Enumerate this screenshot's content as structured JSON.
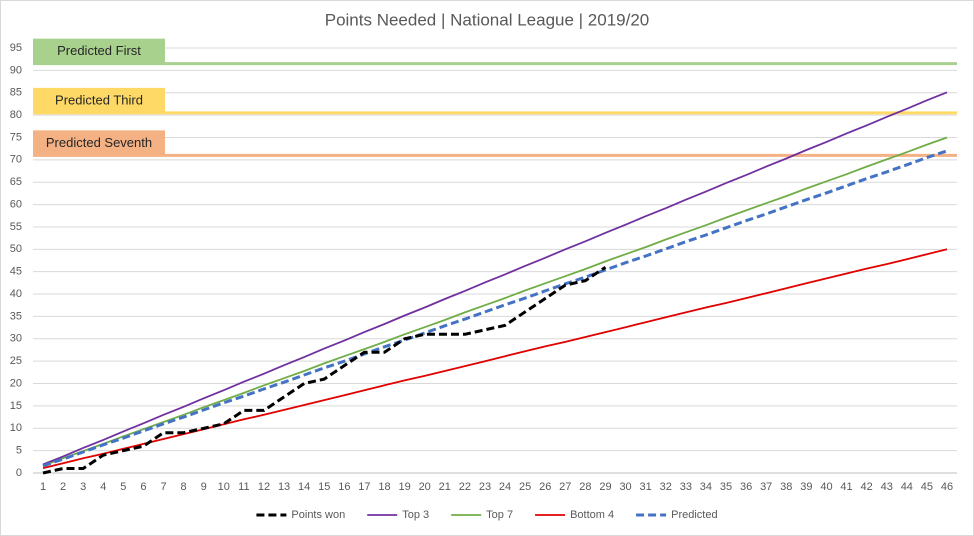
{
  "chart_data": {
    "type": "line",
    "title": "Points Needed  | National League | 2019/20",
    "categories": [
      1,
      2,
      3,
      4,
      5,
      6,
      7,
      8,
      9,
      10,
      11,
      12,
      13,
      14,
      15,
      16,
      17,
      18,
      19,
      20,
      21,
      22,
      23,
      24,
      25,
      26,
      27,
      28,
      29,
      30,
      31,
      32,
      33,
      34,
      35,
      36,
      37,
      38,
      39,
      40,
      41,
      42,
      43,
      44,
      45,
      46
    ],
    "ylim": [
      0,
      95
    ],
    "yticks": [
      0,
      5,
      10,
      15,
      20,
      25,
      30,
      35,
      40,
      45,
      50,
      55,
      60,
      65,
      70,
      75,
      80,
      85,
      90,
      95
    ],
    "grid": true,
    "legend": "bottom",
    "series": [
      {
        "name": "Points won",
        "color": "#000000",
        "dashed": true,
        "values": [
          0,
          1,
          1,
          4,
          5,
          6,
          9,
          9,
          10,
          11,
          14,
          14,
          17,
          20,
          21,
          24,
          27,
          27,
          30,
          31,
          31,
          31,
          32,
          33,
          36,
          39,
          42,
          43,
          46,
          null,
          null,
          null,
          null,
          null,
          null,
          null,
          null,
          null,
          null,
          null,
          null,
          null,
          null,
          null,
          null,
          null
        ]
      },
      {
        "name": "Top 3",
        "color": "#7030a0",
        "dashed": false,
        "values": [
          1.9,
          3.7,
          5.6,
          7.4,
          9.3,
          11.1,
          13.0,
          14.8,
          16.7,
          18.5,
          20.4,
          22.2,
          24.1,
          25.9,
          27.8,
          29.6,
          31.5,
          33.3,
          35.2,
          37.0,
          38.9,
          40.7,
          42.6,
          44.4,
          46.3,
          48.1,
          50.0,
          51.8,
          53.7,
          55.5,
          57.4,
          59.2,
          61.1,
          62.9,
          64.8,
          66.6,
          68.5,
          70.3,
          72.2,
          74.0,
          75.9,
          77.7,
          79.6,
          81.4,
          83.3,
          85.1
        ]
      },
      {
        "name": "Top 7",
        "color": "#70ad47",
        "dashed": false,
        "values": [
          1.6,
          3.3,
          4.9,
          6.5,
          8.2,
          9.8,
          11.4,
          13.0,
          14.7,
          16.3,
          17.9,
          19.6,
          21.2,
          22.8,
          24.5,
          26.1,
          27.7,
          29.3,
          31.0,
          32.6,
          34.2,
          35.9,
          37.5,
          39.1,
          40.8,
          42.4,
          44.0,
          45.6,
          47.3,
          48.9,
          50.5,
          52.2,
          53.8,
          55.4,
          57.1,
          58.7,
          60.3,
          61.9,
          63.6,
          65.2,
          66.8,
          68.5,
          70.1,
          71.7,
          73.4,
          75.0
        ]
      },
      {
        "name": "Bottom 4",
        "color": "#e00000",
        "dashed": false,
        "values": [
          1.1,
          2.2,
          3.3,
          4.3,
          5.4,
          6.5,
          7.6,
          8.7,
          9.8,
          10.9,
          12.0,
          13.0,
          14.1,
          15.2,
          16.3,
          17.4,
          18.5,
          19.6,
          20.7,
          21.7,
          22.8,
          23.9,
          25.0,
          26.1,
          27.2,
          28.3,
          29.3,
          30.4,
          31.5,
          32.6,
          33.7,
          34.8,
          35.9,
          37.0,
          38.0,
          39.1,
          40.2,
          41.3,
          42.4,
          43.5,
          44.6,
          45.7,
          46.7,
          47.8,
          48.9,
          50.0
        ]
      },
      {
        "name": "Predicted",
        "color": "#4472c4",
        "dashed": true,
        "values": [
          1.6,
          3.1,
          4.7,
          6.3,
          7.8,
          9.4,
          11.0,
          12.5,
          14.1,
          15.7,
          17.2,
          18.8,
          20.3,
          21.9,
          23.5,
          25.0,
          26.6,
          28.2,
          29.7,
          31.3,
          32.9,
          34.4,
          36.0,
          37.6,
          39.1,
          40.7,
          42.3,
          43.8,
          45.4,
          47.0,
          48.5,
          50.1,
          51.7,
          53.2,
          54.8,
          56.4,
          57.9,
          59.5,
          61.1,
          62.6,
          64.2,
          65.8,
          67.3,
          68.9,
          70.5,
          72.0
        ]
      }
    ],
    "reference_lines": [
      {
        "label": "Predicted First",
        "value": 91.5,
        "color": "#a9d18e"
      },
      {
        "label": "Predicted Third",
        "value": 80.5,
        "color": "#ffd966"
      },
      {
        "label": "Predicted Seventh",
        "value": 71,
        "color": "#f4b183"
      }
    ]
  }
}
